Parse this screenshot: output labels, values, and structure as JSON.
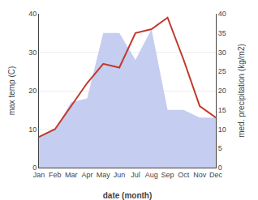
{
  "chart_data": {
    "type": "line",
    "categories": [
      "Jan",
      "Feb",
      "Mar",
      "Apr",
      "May",
      "Jun",
      "Jul",
      "Aug",
      "Sep",
      "Oct",
      "Nov",
      "Dec"
    ],
    "series": [
      {
        "type": "area",
        "color": "#c5cdf0",
        "axis": "y2",
        "values": [
          8,
          10,
          17,
          18,
          35,
          35,
          28,
          36,
          15,
          15,
          13,
          13
        ]
      },
      {
        "type": "line",
        "color": "#c0392b",
        "values": [
          8,
          10,
          16,
          22,
          27,
          26,
          35,
          36,
          39,
          28,
          16,
          13
        ]
      }
    ],
    "xlabel": "date (month)",
    "ylabel": "max temp (C)",
    "y2label": "med. precipitation (kg/m2)",
    "ylim": [
      0,
      40
    ],
    "yticks": [
      0,
      10,
      20,
      30,
      40
    ],
    "y2lim": [
      0,
      40
    ],
    "y2ticks": [
      0,
      5,
      10,
      15,
      20,
      25,
      30,
      35,
      40
    ],
    "grid": true
  }
}
